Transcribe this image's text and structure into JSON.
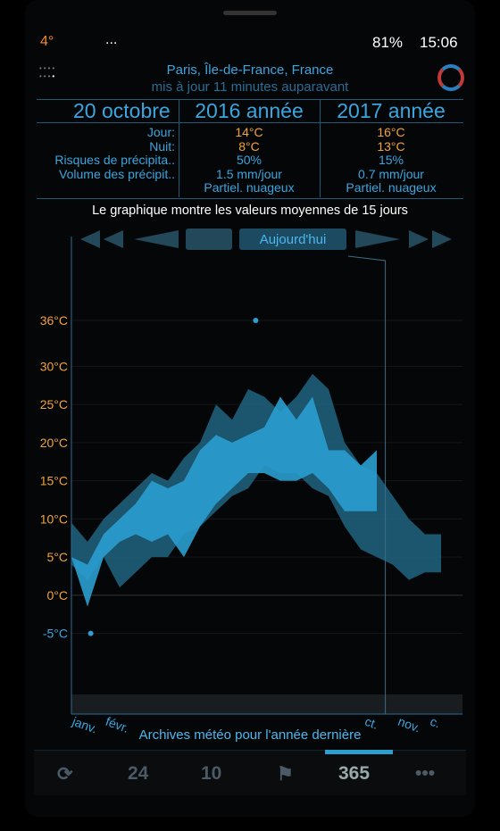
{
  "status": {
    "temp": "4°",
    "dots": "...",
    "battery": "81%",
    "time": "15:06"
  },
  "header": {
    "location": "Paris, Île-de-France, France",
    "updated": "mis à jour 11 minutes auparavant"
  },
  "table": {
    "columns": [
      "20 octobre",
      "2016 année",
      "2017 année"
    ],
    "rows": [
      [
        "Jour:",
        "14°C",
        "16°C"
      ],
      [
        "Nuit:",
        "8°C",
        "13°C"
      ],
      [
        "Risques de précipita..",
        "50%",
        "15%"
      ],
      [
        "Volume des précipit..",
        "1.5 mm/jour",
        "0.7 mm/jour"
      ],
      [
        null,
        "Partiel. nuageux",
        "Partiel. nuageux"
      ]
    ]
  },
  "note": "Le graphique montre les valeurs moyennes de 15 jours",
  "today_button": "Aujourd'hui",
  "chart_data": {
    "type": "band",
    "xlim": [
      0,
      365
    ],
    "ylim": [
      -13,
      47
    ],
    "yticks": [
      {
        "value": 36,
        "label": "36°C"
      },
      {
        "value": 30,
        "label": "30°C"
      },
      {
        "value": 25,
        "label": "25°C"
      },
      {
        "value": 20,
        "label": "20°C"
      },
      {
        "value": 15,
        "label": "15°C"
      },
      {
        "value": 10,
        "label": "10°C"
      },
      {
        "value": 5,
        "label": "5°C"
      },
      {
        "value": 0,
        "label": "0°C"
      },
      {
        "value": -5,
        "label": "-5°C"
      }
    ],
    "grid": true,
    "months": {
      "x": [
        0,
        31,
        273,
        304,
        334
      ],
      "labels": [
        "janv.",
        "févr.",
        "ct.",
        "nov.",
        "c."
      ]
    },
    "series": [
      {
        "color": "#1f5f7a",
        "x": [
          0,
          15,
          30,
          45,
          60,
          75,
          90,
          105,
          120,
          135,
          150,
          165,
          180,
          195,
          210,
          225,
          240,
          255,
          270,
          285,
          300,
          315,
          330,
          345
        ],
        "high": [
          9.5,
          7,
          10,
          12,
          14,
          16,
          15,
          18,
          20,
          25,
          23,
          27,
          26,
          24,
          26,
          29,
          27,
          20,
          17,
          16,
          13,
          10,
          8,
          8
        ],
        "low": [
          4,
          2,
          5,
          1,
          3,
          5,
          5,
          8,
          9,
          11,
          13,
          14,
          17,
          16,
          16,
          14,
          13,
          9,
          6,
          5,
          4,
          2,
          3,
          3
        ]
      },
      {
        "color": "#2a9fd0",
        "x": [
          0,
          15,
          30,
          45,
          60,
          75,
          90,
          105,
          120,
          135,
          150,
          165,
          180,
          195,
          210,
          225,
          240,
          255,
          270,
          285
        ],
        "high": [
          5,
          4,
          8,
          10,
          12,
          15,
          14,
          15,
          19,
          21,
          20,
          21,
          22,
          26,
          23,
          26,
          19,
          19,
          17,
          19
        ],
        "low": [
          5,
          -1.5,
          5,
          7,
          8,
          7,
          8,
          5,
          9,
          12,
          14,
          16,
          16,
          15,
          15,
          16,
          14,
          11,
          11,
          11
        ]
      }
    ],
    "extremes": {
      "x": [
        172,
        18
      ],
      "values": [
        36,
        -5
      ]
    },
    "today_x": 293,
    "footer": "Archives météo pour l'année dernière"
  },
  "nav": [
    "24",
    "10",
    "365"
  ]
}
